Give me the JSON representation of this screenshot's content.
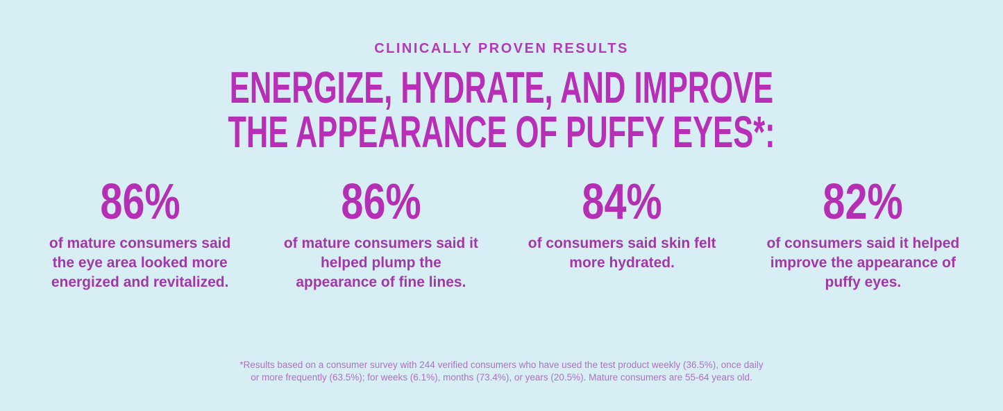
{
  "colors": {
    "background": "#d7eef5",
    "eyebrow": "#b13ab6",
    "title": "#b72fb7",
    "stat_value": "#b52fb5",
    "stat_text": "#a138a9",
    "footnote": "#ad70c4"
  },
  "header": {
    "eyebrow": "CLINICALLY PROVEN RESULTS",
    "title_line1": "ENERGIZE, HYDRATE, AND IMPROVE",
    "title_line2": "THE APPEARANCE OF PUFFY EYES*:"
  },
  "stats": [
    {
      "value": "86%",
      "description": "of mature consumers said\nthe eye area looked more\nenergized and revitalized."
    },
    {
      "value": "86%",
      "description": "of mature consumers said it\nhelped plump the\nappearance of fine lines."
    },
    {
      "value": "84%",
      "description": "of consumers said skin felt\nmore hydrated."
    },
    {
      "value": "82%",
      "description": "of consumers said it helped\nimprove the appearance of\npuffy eyes."
    }
  ],
  "footnote": {
    "text": "*Results based on a consumer survey with 244 verified consumers who have used the test product weekly (36.5%), once daily\nor more frequently (63.5%); for weeks (6.1%), months (73.4%), or years (20.5%). Mature consumers are 55-64 years old."
  }
}
